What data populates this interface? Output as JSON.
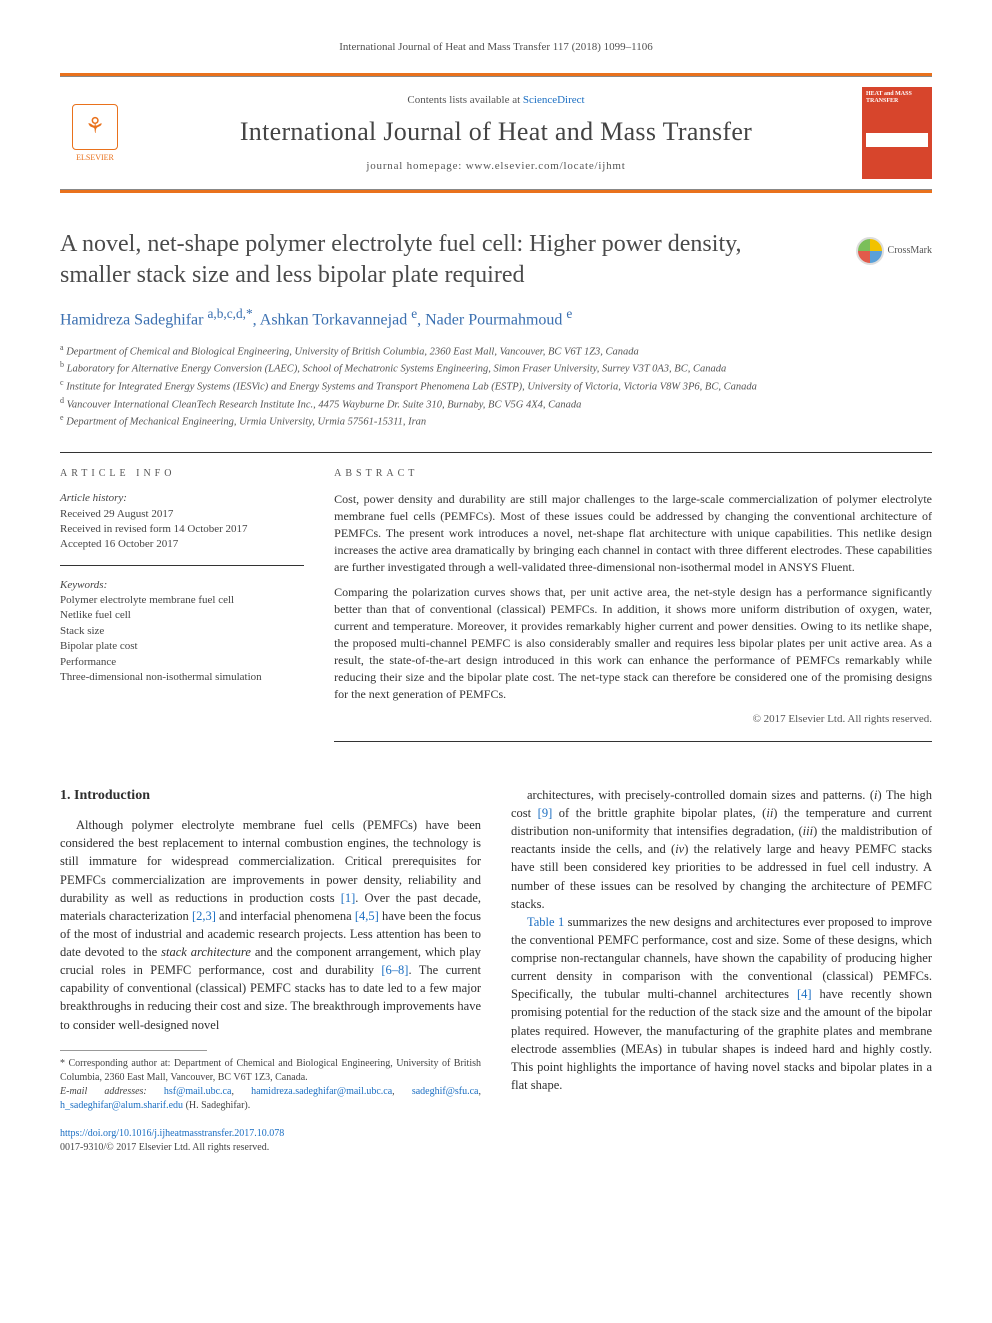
{
  "running_head": "International Journal of Heat and Mass Transfer 117 (2018) 1099–1106",
  "masthead": {
    "contents_prefix": "Contents lists available at ",
    "contents_link": "ScienceDirect",
    "journal_title": "International Journal of Heat and Mass Transfer",
    "homepage_prefix": "journal homepage: ",
    "homepage_url": "www.elsevier.com/locate/ijhmt",
    "publisher": "ELSEVIER",
    "cover_label": "HEAT and MASS TRANSFER"
  },
  "crossmark": "CrossMark",
  "article": {
    "title": "A novel, net-shape polymer electrolyte fuel cell: Higher power density, smaller stack size and less bipolar plate required",
    "authors_html": "Hamidreza Sadeghifar <sup>a,b,c,d,*</sup>, Ashkan Torkavannejad <sup>e</sup>, Nader Pourmahmoud <sup>e</sup>",
    "affiliations": [
      "a Department of Chemical and Biological Engineering, University of British Columbia, 2360 East Mall, Vancouver, BC V6T 1Z3, Canada",
      "b Laboratory for Alternative Energy Conversion (LAEC), School of Mechatronic Systems Engineering, Simon Fraser University, Surrey V3T 0A3, BC, Canada",
      "c Institute for Integrated Energy Systems (IESVic) and Energy Systems and Transport Phenomena Lab (ESTP), University of Victoria, Victoria V8W 3P6, BC, Canada",
      "d Vancouver International CleanTech Research Institute Inc., 4475 Wayburne Dr. Suite 310, Burnaby, BC V5G 4X4, Canada",
      "e Department of Mechanical Engineering, Urmia University, Urmia 57561-15311, Iran"
    ]
  },
  "info": {
    "label": "ARTICLE INFO",
    "history_label": "Article history:",
    "history": [
      "Received 29 August 2017",
      "Received in revised form 14 October 2017",
      "Accepted 16 October 2017"
    ],
    "keywords_label": "Keywords:",
    "keywords": [
      "Polymer electrolyte membrane fuel cell",
      "Netlike fuel cell",
      "Stack size",
      "Bipolar plate cost",
      "Performance",
      "Three-dimensional non-isothermal simulation"
    ]
  },
  "abstract": {
    "label": "ABSTRACT",
    "paragraphs": [
      "Cost, power density and durability are still major challenges to the large-scale commercialization of polymer electrolyte membrane fuel cells (PEMFCs). Most of these issues could be addressed by changing the conventional architecture of PEMFCs. The present work introduces a novel, net-shape flat architecture with unique capabilities. This netlike design increases the active area dramatically by bringing each channel in contact with three different electrodes. These capabilities are further investigated through a well-validated three-dimensional non-isothermal model in ANSYS Fluent.",
      "Comparing the polarization curves shows that, per unit active area, the net-style design has a performance significantly better than that of conventional (classical) PEMFCs. In addition, it shows more uniform distribution of oxygen, water, current and temperature. Moreover, it provides remarkably higher current and power densities. Owing to its netlike shape, the proposed multi-channel PEMFC is also considerably smaller and requires less bipolar plates per unit active area. As a result, the state-of-the-art design introduced in this work can enhance the performance of PEMFCs remarkably while reducing their size and the bipolar plate cost. The net-type stack can therefore be considered one of the promising designs for the next generation of PEMFCs."
    ],
    "copyright": "© 2017 Elsevier Ltd. All rights reserved."
  },
  "body": {
    "intro_heading": "1. Introduction",
    "col1_html": "Although polymer electrolyte membrane fuel cells (PEMFCs) have been considered the best replacement to internal combustion engines, the technology is still immature for widespread commercialization. Critical prerequisites for PEMFCs commercialization are improvements in power density, reliability and durability as well as reductions in production costs <a href='#'>[1]</a>. Over the past decade, materials characterization <a href='#'>[2,3]</a> and interfacial phenomena <a href='#'>[4,5]</a> have been the focus of the most of industrial and academic research projects. Less attention has been to date devoted to the <span class='it'>stack architecture</span> and the component arrangement, which play crucial roles in PEMFC performance, cost and durability <a href='#'>[6–8]</a>. The current capability of conventional (classical) PEMFC stacks has to date led to a few major breakthroughs in reducing their cost and size. The breakthrough improvements have to consider well-designed novel",
    "col2_p1_html": "architectures, with precisely-controlled domain sizes and patterns. (<span class='it'>i</span>) The high cost <a href='#'>[9]</a> of the brittle graphite bipolar plates, (<span class='it'>ii</span>) the temperature and current distribution non-uniformity that intensifies degradation, (<span class='it'>iii</span>) the maldistribution of reactants inside the cells, and (<span class='it'>iv</span>) the relatively large and heavy PEMFC stacks have still been considered key priorities to be addressed in fuel cell industry. A number of these issues can be resolved by changing the architecture of PEMFC stacks.",
    "col2_p2_html": "<a href='#'>Table 1</a> summarizes the new designs and architectures ever proposed to improve the conventional PEMFC performance, cost and size. Some of these designs, which comprise non-rectangular channels, have shown the capability of producing higher current density in comparison with the conventional (classical) PEMFCs. Specifically, the tubular multi-channel architectures <a href='#'>[4]</a> have recently shown promising potential for the reduction of the stack size and the amount of the bipolar plates required. However, the manufacturing of the graphite plates and membrane electrode assemblies (MEAs) in tubular shapes is indeed hard and highly costly. This point highlights the importance of having novel stacks and bipolar plates in a flat shape."
  },
  "footnotes": {
    "corr": "* Corresponding author at: Department of Chemical and Biological Engineering, University of British Columbia, 2360 East Mall, Vancouver, BC V6T 1Z3, Canada.",
    "email_label": "E-mail addresses:",
    "emails_html": "<a href='#'>hsf@mail.ubc.ca</a>, <a href='#'>hamidreza.sadeghifar@mail.ubc.ca</a>, <a href='#'>sadeghif@sfu.ca</a>, <a href='#'>h_sadeghifar@alum.sharif.edu</a> (H. Sadeghifar)."
  },
  "doi": {
    "url": "https://doi.org/10.1016/j.ijheatmasstransfer.2017.10.078",
    "issn_line": "0017-9310/© 2017 Elsevier Ltd. All rights reserved."
  },
  "colors": {
    "accent_orange": "#e9711c",
    "link_blue": "#1b6ec2",
    "cover_red": "#d7452c",
    "text": "#333333",
    "muted": "#555555"
  }
}
